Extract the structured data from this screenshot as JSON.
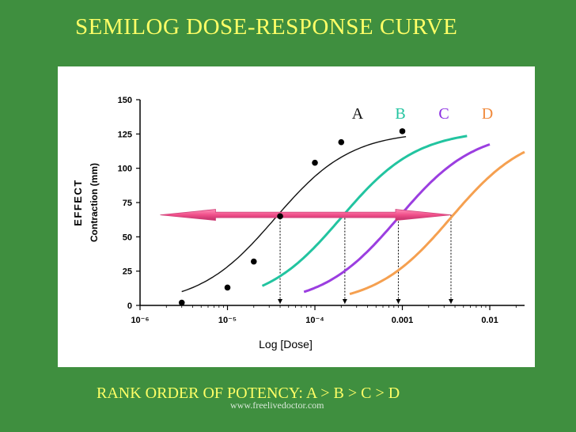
{
  "slide": {
    "title": "SEMILOG DOSE-RESPONSE CURVE",
    "rank_order": "RANK ORDER OF POTENCY: A > B > C > D",
    "watermark": "www.freelivedoctor.com"
  },
  "chart_data": {
    "type": "line",
    "ylabel": "EFFECT",
    "ylabel_sub": "Contraction (mm)",
    "xlabel": "Log [Dose]",
    "x_scale": "log",
    "xlim": [
      1e-06,
      0.025
    ],
    "ylim": [
      0,
      150
    ],
    "x_ticks": [
      1e-06,
      1e-05,
      0.0001,
      0.001,
      0.01
    ],
    "x_tick_labels": [
      "10⁻⁶",
      "10⁻⁵",
      "10⁻⁴",
      "0.001",
      "0.01"
    ],
    "y_ticks": [
      0,
      25,
      50,
      75,
      100,
      125,
      150
    ],
    "y_tick_labels": [
      "0",
      "25",
      "50",
      "75",
      "100",
      "125",
      "150"
    ],
    "grid": false,
    "legend_placement": "top-right",
    "series": [
      {
        "name": "A",
        "color": "#111111",
        "label_color": "#111111",
        "emax": 127,
        "ec50": 3.5e-05,
        "hill": 1,
        "x_start": 3e-06,
        "x_end": 0.0011,
        "ec_marker": 4e-05,
        "points": [
          {
            "x": 3e-06,
            "y": 2
          },
          {
            "x": 1e-05,
            "y": 13
          },
          {
            "x": 2e-05,
            "y": 32
          },
          {
            "x": 4e-05,
            "y": 65
          },
          {
            "x": 0.0001,
            "y": 104
          },
          {
            "x": 0.0002,
            "y": 119
          },
          {
            "x": 0.001,
            "y": 127
          }
        ]
      },
      {
        "name": "B",
        "color": "#22c4a0",
        "label_color": "#22c4a0",
        "emax": 128,
        "ec50": 0.0002,
        "hill": 1,
        "x_start": 2.5e-05,
        "x_end": 0.0055,
        "ec_marker": 0.00022,
        "points": []
      },
      {
        "name": "C",
        "color": "#9b3ee0",
        "label_color": "#8a2be2",
        "emax": 128,
        "ec50": 0.0009,
        "hill": 1,
        "x_start": 7.5e-05,
        "x_end": 0.01,
        "ec_marker": 0.0009,
        "points": []
      },
      {
        "name": "D",
        "color": "#f5a050",
        "label_color": "#f08a3c",
        "emax": 128,
        "ec50": 0.0036,
        "hill": 1,
        "x_start": 0.00025,
        "x_end": 0.025,
        "ec_marker": 0.0036,
        "points": []
      }
    ],
    "annotation": {
      "type": "double-arrow",
      "y": 66,
      "x_from": 1.7e-06,
      "x_to": 0.0036,
      "color": "#f0508a"
    }
  }
}
